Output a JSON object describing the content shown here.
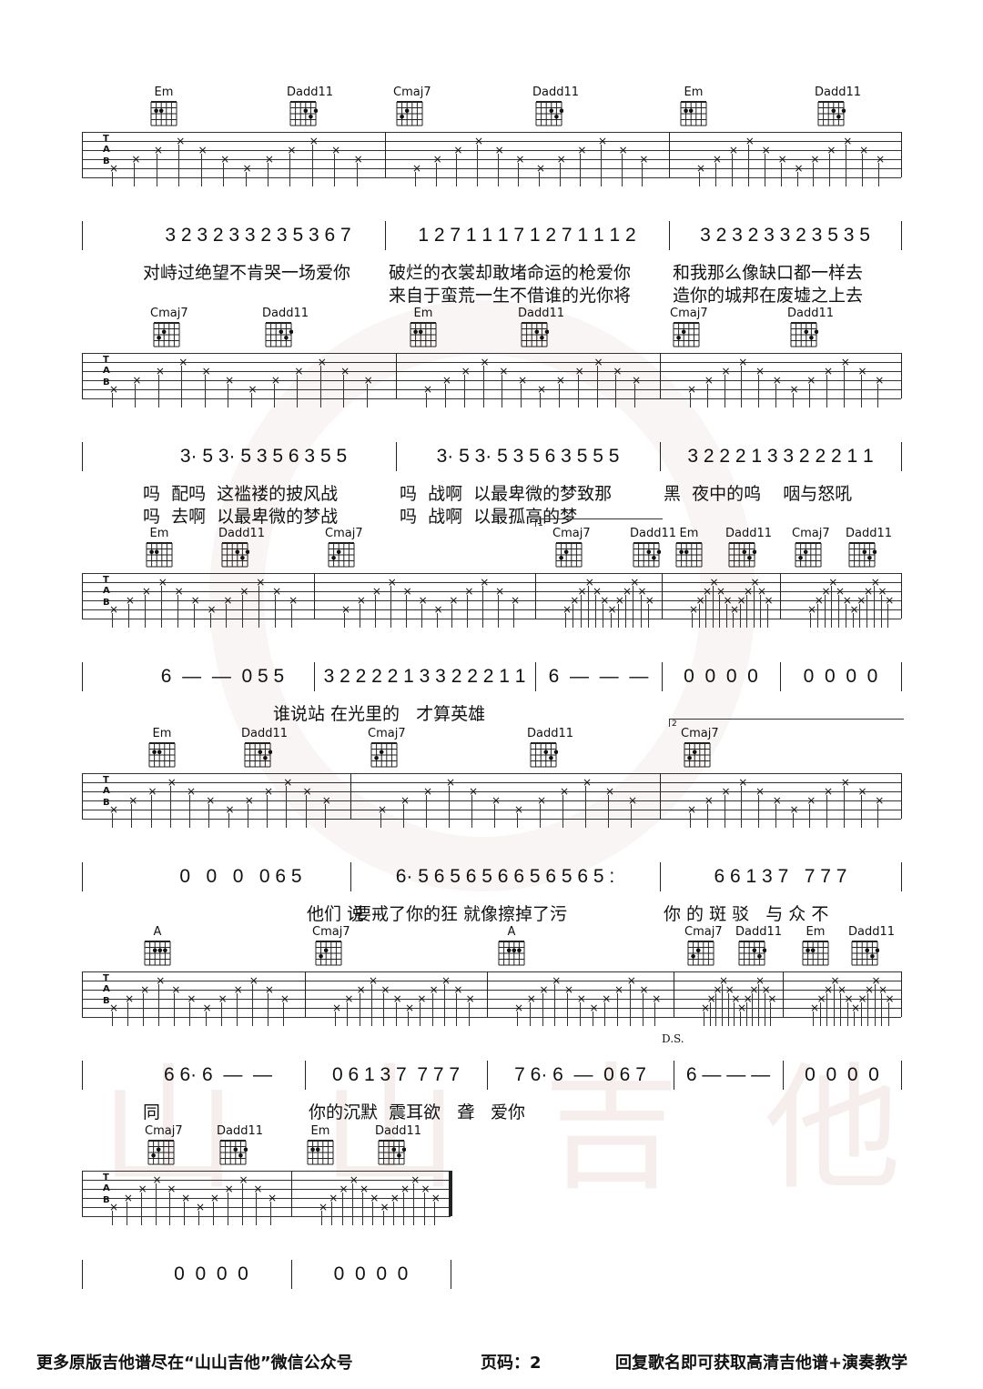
{
  "tab_labels": [
    "T",
    "A",
    "B"
  ],
  "systems": [
    {
      "chords": [
        "Em",
        "Dadd11",
        "Cmaj7",
        "Dadd11",
        "Em",
        "Dadd11"
      ],
      "measures": [
        "3 2 3 2 3 3 2 3 5 3 6 7",
        "1 2 7 1 1 1 7 1 2 7 1 1 1 2",
        "3 2 3 2 3 3 2 3 5 3 5"
      ],
      "lyrics": [
        [
          "对峙过绝望不肯哭一场爱你",
          "破烂的衣裳却敢堵命运的枪爱你",
          "和我那么像缺口都一样去"
        ],
        [
          "",
          "来自于蛮荒一生不借谁的光你将",
          "造你的城邦在废墟之上去"
        ]
      ]
    },
    {
      "chords": [
        "Cmaj7",
        "Dadd11",
        "Em",
        "Dadd11",
        "Cmaj7",
        "Dadd11"
      ],
      "measures": [
        "3· 5 3· 5 3 5 6 3 5 5",
        "3· 5 3· 5 3 5 6 3 5 5 5",
        "3 2 2 2 1 3 3 2 2 2 1 1"
      ],
      "lyrics": [
        [
          "吗  配吗  这褴褛的披风战",
          "吗  战啊  以最卑微的梦致那",
          "黑  夜中的呜    咽与怒吼"
        ],
        [
          "吗  去啊  以最卑微的梦战",
          "吗  战啊  以最孤高的梦",
          ""
        ]
      ]
    },
    {
      "chords": [
        "Em",
        "Dadd11",
        "Cmaj7",
        "Cmaj7",
        "Dadd11",
        "Em",
        "Dadd11",
        "Cmaj7",
        "Dadd11"
      ],
      "volta": "1",
      "measures": [
        "6  —  —  0 5 5",
        "3 2 2 2 2 1 3 3 2 2 2 1 1",
        "6  —  —  —",
        "0  0  0  0",
        "0  0  0  0"
      ],
      "lyrics": [
        [
          "",
          "谁说站 在光里的   才算英雄",
          "",
          "",
          ""
        ]
      ]
    },
    {
      "chords": [
        "Em",
        "Dadd11",
        "Cmaj7",
        "Dadd11",
        "Cmaj7"
      ],
      "volta": "2",
      "measures": [
        "0   0   0   0 6 5",
        "6· 5 6 5 6 5 6 6 5 6 5 6 5 :",
        "6 6 1 3 7   7 7 7"
      ],
      "lyrics": [
        [
          "他们 说",
          "要戒了你的狂 就像擦掉了污",
          "你 的 斑 驳   与 众 不"
        ]
      ]
    },
    {
      "chords": [
        "A",
        "Cmaj7",
        "A",
        "Cmaj7",
        "Dadd11",
        "Em",
        "Dadd11"
      ],
      "measures": [
        "6 6· 6  —  —",
        "0 6 1 3 7  7 7 7",
        "7 6· 6  —  0 6 7",
        "6 — — —",
        "0  0  0  0"
      ],
      "lyrics": [
        [
          "同",
          "你的沉默  震耳欲   聋",
          "爱你",
          "",
          ""
        ]
      ],
      "ds": "D.S."
    },
    {
      "chords": [
        "Cmaj7",
        "Dadd11",
        "Em",
        "Dadd11"
      ],
      "measures": [
        "0  0  0  0",
        "0  0  0  0"
      ],
      "lyrics": []
    }
  ],
  "watermark": [
    "山",
    "山",
    "吉",
    "他"
  ],
  "footer": {
    "left": "更多原版吉他谱尽在“山山吉他”微信公众号",
    "page": "页码：2",
    "right": "回复歌名即可获取高清吉他谱+演奏教学"
  }
}
